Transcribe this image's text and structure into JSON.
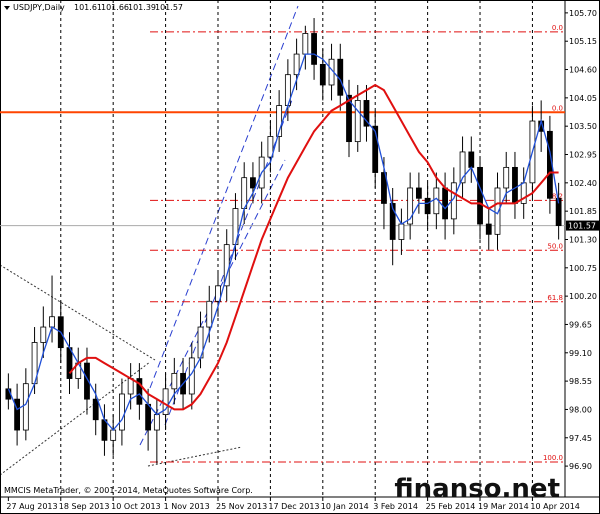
{
  "chart_data": {
    "type": "candlestick",
    "symbol": "USDJPY,Daily",
    "ohlc_header": [
      101.61,
      101.66,
      101.39,
      101.57
    ],
    "current_price": 101.57,
    "footer": "MMCIS MetaTrader, © 2001-2014, MetaQuotes Software Corp.",
    "watermark": "finanso.net",
    "ylim": [
      96.3,
      105.95
    ],
    "yticks": [
      {
        "value": 105.7,
        "label": "105.70"
      },
      105.15,
      {
        "value": 104.6,
        "label": "104.60"
      },
      104.05,
      {
        "value": 103.5,
        "label": "103.50"
      },
      102.95,
      {
        "value": 102.4,
        "label": "102.40"
      },
      101.85,
      {
        "value": 101.3,
        "label": "101.30"
      },
      100.75,
      {
        "value": 100.2,
        "label": "100.20"
      },
      99.65,
      {
        "value": 99.1,
        "label": "99.10"
      },
      98.55,
      {
        "value": 98.0,
        "label": "98.00"
      },
      97.45,
      {
        "value": 96.9,
        "label": "96.90"
      }
    ],
    "categories": [
      "27 Aug 2013",
      null,
      null,
      null,
      null,
      null,
      "18 Sep 2013",
      null,
      null,
      null,
      null,
      null,
      "10 Oct 2013",
      null,
      null,
      null,
      null,
      null,
      "1 Nov 2013",
      null,
      null,
      null,
      null,
      null,
      "25 Nov 2013",
      null,
      null,
      null,
      null,
      null,
      "17 Dec 2013",
      null,
      null,
      null,
      null,
      null,
      "10 Jan 2014",
      null,
      null,
      null,
      null,
      null,
      "3 Feb 2014",
      null,
      null,
      null,
      null,
      null,
      "25 Feb 2014",
      null,
      null,
      null,
      null,
      null,
      "19 Mar 2014",
      null,
      null,
      null,
      null,
      null,
      "10 Apr 2014",
      null,
      null,
      null
    ],
    "open": [
      98.4,
      98.2,
      97.6,
      98.5,
      99.3,
      99.6,
      99.8,
      99.2,
      98.6,
      98.9,
      98.2,
      97.8,
      97.4,
      97.6,
      98.3,
      98.6,
      98.1,
      97.6,
      97.9,
      98.4,
      98.7,
      98.3,
      99.0,
      99.6,
      100.1,
      100.4,
      101.2,
      101.9,
      102.5,
      102.3,
      102.9,
      103.3,
      103.9,
      104.5,
      104.9,
      105.3,
      104.7,
      104.3,
      104.8,
      104.1,
      103.2,
      104.0,
      103.5,
      102.6,
      102.0,
      101.3,
      101.6,
      102.3,
      102.1,
      101.8,
      102.3,
      101.7,
      102.4,
      103.0,
      102.7,
      101.6,
      101.4,
      102.3,
      102.7,
      102.0,
      102.4,
      103.6,
      103.4,
      102.1
    ],
    "high": [
      98.7,
      98.5,
      98.8,
      99.6,
      100.0,
      100.6,
      100.1,
      99.5,
      99.2,
      99.2,
      98.5,
      98.1,
      97.9,
      98.6,
      98.9,
      98.9,
      98.4,
      98.2,
      98.7,
      99.0,
      99.0,
      99.3,
      99.9,
      100.4,
      100.7,
      101.5,
      102.2,
      102.8,
      102.8,
      103.2,
      103.6,
      104.2,
      104.8,
      105.2,
      105.45,
      105.6,
      105.0,
      105.1,
      105.1,
      104.4,
      104.3,
      104.3,
      103.8,
      102.9,
      102.3,
      101.9,
      102.6,
      102.6,
      102.4,
      102.6,
      102.6,
      102.7,
      103.3,
      103.3,
      102.9,
      101.9,
      102.6,
      103.0,
      103.0,
      102.7,
      103.9,
      104.0,
      103.7,
      102.4
    ],
    "low": [
      98.0,
      97.3,
      97.4,
      98.3,
      99.0,
      99.3,
      98.9,
      98.3,
      98.4,
      97.9,
      97.5,
      97.1,
      97.1,
      97.3,
      98.0,
      97.8,
      97.2,
      96.95,
      97.6,
      98.1,
      98.0,
      98.0,
      98.8,
      99.3,
      99.8,
      100.1,
      100.9,
      101.6,
      102.0,
      102.0,
      102.6,
      103.0,
      103.6,
      104.2,
      104.6,
      104.4,
      104.0,
      104.0,
      103.8,
      102.9,
      103.0,
      103.2,
      102.3,
      101.5,
      100.8,
      101.0,
      101.3,
      101.8,
      101.5,
      101.5,
      101.3,
      101.4,
      102.1,
      102.4,
      101.3,
      101.1,
      101.1,
      102.0,
      101.7,
      101.7,
      102.1,
      103.0,
      101.8,
      101.3
    ],
    "close": [
      98.2,
      97.6,
      98.5,
      99.3,
      99.6,
      99.8,
      99.2,
      98.6,
      98.9,
      98.2,
      97.8,
      97.4,
      97.6,
      98.3,
      98.6,
      98.1,
      97.6,
      97.9,
      98.4,
      98.7,
      98.3,
      99.0,
      99.6,
      100.1,
      100.4,
      101.2,
      101.9,
      102.5,
      102.3,
      102.9,
      103.3,
      103.9,
      104.5,
      104.9,
      105.3,
      104.7,
      104.3,
      104.8,
      104.1,
      103.2,
      104.0,
      103.5,
      102.6,
      102.0,
      101.3,
      101.6,
      102.3,
      102.1,
      101.8,
      102.3,
      101.7,
      102.4,
      103.0,
      102.7,
      101.6,
      101.4,
      102.3,
      102.7,
      102.0,
      102.4,
      103.6,
      103.4,
      102.1,
      101.57
    ],
    "up_color": "#ffffff",
    "down_color": "#000000",
    "series": [
      {
        "color": "#1f4fd8",
        "values": [
          98.4,
          98.0,
          98.1,
          98.5,
          99.1,
          99.6,
          99.5,
          99.2,
          98.9,
          98.6,
          98.3,
          97.8,
          97.6,
          97.8,
          98.2,
          98.3,
          98.1,
          97.9,
          98.0,
          98.3,
          98.5,
          98.7,
          99.0,
          99.5,
          100.0,
          100.6,
          101.2,
          101.9,
          102.2,
          102.6,
          102.8,
          103.4,
          103.9,
          104.4,
          104.9,
          104.9,
          104.8,
          104.6,
          104.4,
          104.0,
          103.8,
          103.6,
          103.4,
          102.7,
          101.9,
          101.6,
          101.7,
          102.0,
          102.0,
          102.1,
          101.9,
          102.1,
          102.5,
          102.7,
          102.3,
          101.9,
          101.8,
          102.2,
          102.3,
          102.4,
          103.0,
          103.6,
          103.0,
          102.0
        ]
      },
      {
        "color": "#e01010",
        "values": [
          null,
          null,
          null,
          null,
          null,
          null,
          null,
          98.7,
          98.9,
          99.0,
          99.0,
          98.9,
          98.8,
          98.7,
          98.6,
          98.5,
          98.3,
          98.2,
          98.1,
          98.0,
          98.0,
          98.1,
          98.3,
          98.6,
          98.9,
          99.3,
          99.8,
          100.3,
          100.8,
          101.3,
          101.7,
          102.1,
          102.5,
          102.8,
          103.1,
          103.4,
          103.6,
          103.8,
          103.9,
          104.0,
          104.1,
          104.2,
          104.3,
          104.2,
          103.9,
          103.6,
          103.3,
          103.0,
          102.8,
          102.5,
          102.3,
          102.2,
          102.1,
          102.0,
          102.0,
          101.9,
          102.0,
          102.0,
          102.0,
          102.1,
          102.2,
          102.4,
          102.6,
          102.6
        ]
      }
    ],
    "horizontal_line": {
      "price": 103.77,
      "color": "#ff4500"
    },
    "fib_levels": [
      {
        "label": "0.0",
        "price": 105.33
      },
      {
        "label": "0.0",
        "price": 103.77
      },
      {
        "label": "38.2",
        "price": 102.06
      },
      {
        "label": "50.0",
        "price": 101.09
      },
      {
        "label": "61.8",
        "price": 100.09
      },
      {
        "label": "100.0",
        "price": 96.98
      }
    ]
  }
}
